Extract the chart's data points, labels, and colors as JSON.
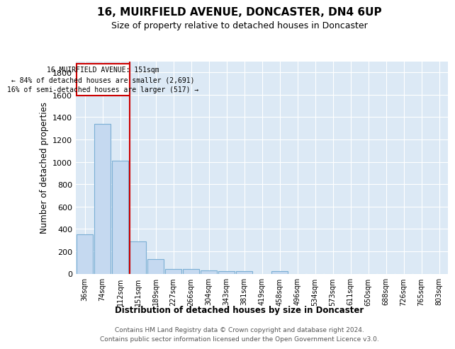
{
  "title": "16, MUIRFIELD AVENUE, DONCASTER, DN4 6UP",
  "subtitle": "Size of property relative to detached houses in Doncaster",
  "xlabel_bottom": "Distribution of detached houses by size in Doncaster",
  "ylabel": "Number of detached properties",
  "footer": "Contains HM Land Registry data © Crown copyright and database right 2024.\nContains public sector information licensed under the Open Government Licence v3.0.",
  "categories": [
    "36sqm",
    "74sqm",
    "112sqm",
    "151sqm",
    "189sqm",
    "227sqm",
    "266sqm",
    "304sqm",
    "343sqm",
    "381sqm",
    "419sqm",
    "458sqm",
    "496sqm",
    "534sqm",
    "573sqm",
    "611sqm",
    "650sqm",
    "688sqm",
    "726sqm",
    "765sqm",
    "803sqm"
  ],
  "values": [
    350,
    1340,
    1010,
    290,
    130,
    40,
    40,
    30,
    20,
    20,
    0,
    20,
    0,
    0,
    0,
    0,
    0,
    0,
    0,
    0,
    0
  ],
  "bar_color": "#c5d9f0",
  "bar_edge_color": "#7bafd4",
  "background_color": "#dce9f5",
  "grid_color": "#ffffff",
  "red_line_color": "#cc0000",
  "annotation_line1": "16 MUIRFIELD AVENUE: 151sqm",
  "annotation_line2": "← 84% of detached houses are smaller (2,691)",
  "annotation_line3": "16% of semi-detached houses are larger (517) →",
  "annotation_box_color": "#cc0000",
  "ylim": [
    0,
    1900
  ],
  "yticks": [
    0,
    200,
    400,
    600,
    800,
    1000,
    1200,
    1400,
    1600,
    1800
  ]
}
